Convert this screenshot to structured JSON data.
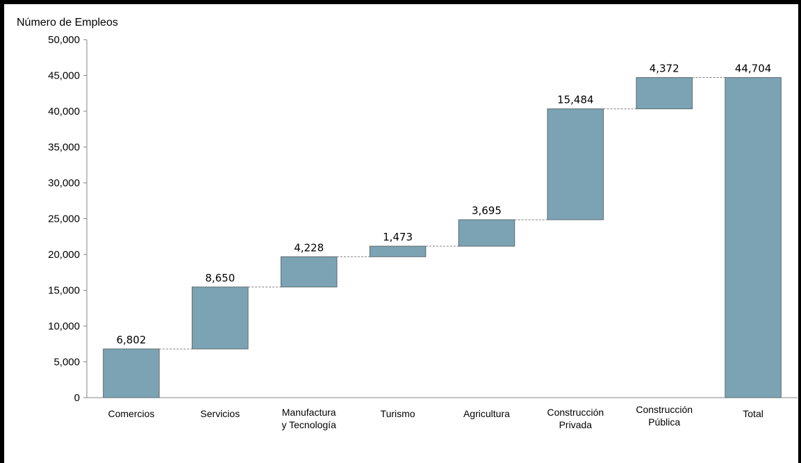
{
  "chart_data": {
    "type": "bar",
    "subtype": "waterfall",
    "ylabel": "Número de Empleos",
    "ylim": [
      0,
      50000
    ],
    "yticks": [
      "0",
      "5,000",
      "10,000",
      "15,000",
      "20,000",
      "25,000",
      "30,000",
      "35,000",
      "40,000",
      "45,000",
      "50,000"
    ],
    "categories": [
      [
        "Comercios"
      ],
      [
        "Servicios"
      ],
      [
        "Manufactura",
        "y Tecnología"
      ],
      [
        "Turismo"
      ],
      [
        "Agricultura"
      ],
      [
        "Construcción",
        "Privada"
      ],
      [
        "Construcción",
        "Pública"
      ],
      [
        "Total"
      ]
    ],
    "values": [
      6802,
      8650,
      4228,
      1473,
      3695,
      15484,
      4372,
      44704
    ],
    "value_labels": [
      "6,802",
      "8,650",
      "4,228",
      "1,473",
      "3,695",
      "15,484",
      "4,372",
      "44,704"
    ],
    "last_is_total": true,
    "bar_color": "#7ba3b3",
    "bar_stroke": "#5f6a70",
    "connector_color": "#7f7f7f",
    "grid": false
  }
}
